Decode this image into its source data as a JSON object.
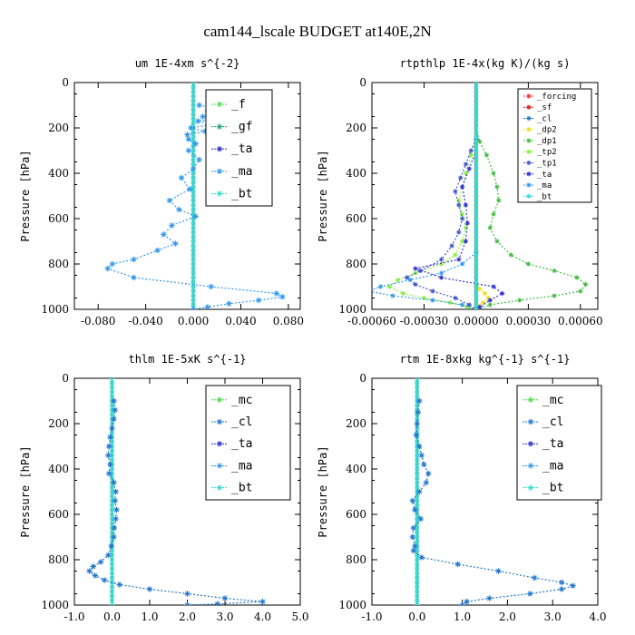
{
  "title": "cam144_lscale  BUDGET at140E,2N",
  "colors": {
    "_f": "#55dd55",
    "_gf": "#22aa77",
    "_ta": "#3333cc",
    "_ma": "#3399ee",
    "_bt": "#33ddcc",
    "_mc": "#55dd55",
    "_cl": "#2277cc",
    "_forcing": "#ee3333",
    "_sf": "#cc2222",
    "_dp2": "#eedd22",
    "_dp1": "#44bb44",
    "_tp2": "#88ee44",
    "_tp1": "#4455cc",
    "axis": "#000000",
    "zero_line": "#3fb050"
  },
  "chart_data": [
    {
      "type": "line",
      "title": "um  1E-4xm s^{-2}",
      "xlabel": "",
      "ylabel": "Pressure [hPa]",
      "xlim": [
        -0.1,
        0.09
      ],
      "ylim": [
        1000,
        0
      ],
      "xticks": [
        -0.08,
        -0.04,
        0.0,
        0.04,
        0.08
      ],
      "xtick_labels": [
        "-0.080",
        "-0.040",
        "0.000",
        "0.040",
        "0.080"
      ],
      "yticks": [
        0,
        200,
        400,
        600,
        800,
        1000
      ],
      "ytick_labels": [
        "0",
        "200",
        "400",
        "600",
        "800",
        "1000"
      ],
      "legend": [
        "_f",
        "_gf",
        "_ta",
        "_ma",
        "_bt"
      ],
      "legend_size": "large",
      "series": [
        {
          "name": "_f",
          "style": "flat",
          "values": [
            0.0
          ]
        },
        {
          "name": "_gf",
          "style": "flat",
          "values": [
            0.0
          ]
        },
        {
          "name": "_ta",
          "style": "flat",
          "values": [
            0.0
          ]
        },
        {
          "name": "_bt",
          "style": "flat",
          "values": [
            0.0
          ]
        },
        {
          "name": "_ma",
          "style": "profile",
          "p": [
            100,
            115,
            125,
            140,
            150,
            160,
            170,
            185,
            200,
            215,
            230,
            250,
            270,
            300,
            340,
            380,
            420,
            470,
            520,
            560,
            590,
            630,
            670,
            710,
            740,
            780,
            800,
            820,
            860,
            900,
            930,
            945,
            960,
            975,
            990,
            1000
          ],
          "x": [
            0.005,
            0.022,
            0.012,
            0.025,
            0.008,
            0.018,
            0.004,
            0.015,
            -0.002,
            0.01,
            -0.005,
            -0.004,
            0.002,
            -0.004,
            0.005,
            0.0,
            -0.01,
            -0.003,
            -0.02,
            -0.012,
            0.002,
            -0.018,
            -0.025,
            -0.015,
            -0.03,
            -0.05,
            -0.068,
            -0.072,
            -0.05,
            0.015,
            0.07,
            0.075,
            0.055,
            0.03,
            0.012,
            0.0
          ]
        }
      ]
    },
    {
      "type": "line",
      "title": "rtpthlp  1E-4x(kg K)/(kg s)",
      "xlabel": "",
      "ylabel": "Pressure [hPa]",
      "xlim": [
        -0.0006,
        0.0007
      ],
      "ylim": [
        1000,
        0
      ],
      "xticks": [
        -0.0006,
        -0.0003,
        0.0,
        0.0003,
        0.0006
      ],
      "xtick_labels": [
        "-0.00060",
        "-0.00030",
        "0.00000",
        "0.00030",
        "0.00060"
      ],
      "yticks": [
        0,
        200,
        400,
        600,
        800,
        1000
      ],
      "ytick_labels": [
        "0",
        "200",
        "400",
        "600",
        "800",
        "1000"
      ],
      "legend": [
        "_forcing",
        "_sf",
        "_cl",
        "_dp2",
        "_dp1",
        "_tp2",
        "_tp1",
        "_ta",
        "_ma",
        "_bt"
      ],
      "legend_size": "small",
      "series": [
        {
          "name": "_forcing",
          "style": "flat",
          "values": [
            0.0
          ]
        },
        {
          "name": "_sf",
          "style": "flat",
          "values": [
            0.0
          ]
        },
        {
          "name": "_cl",
          "style": "flat",
          "values": [
            0.0
          ]
        },
        {
          "name": "_dp2",
          "style": "profile",
          "p": [
            880,
            910,
            930,
            950,
            970,
            985,
            1000
          ],
          "x": [
            0.0,
            2e-05,
            5e-05,
            7e-05,
            4e-05,
            1e-05,
            0.0
          ]
        },
        {
          "name": "_dp1",
          "style": "profile",
          "p": [
            200,
            260,
            320,
            400,
            460,
            520,
            580,
            640,
            700,
            760,
            800,
            830,
            860,
            890,
            920,
            940,
            960,
            980,
            1000
          ],
          "x": [
            0.0,
            2e-05,
            6e-05,
            0.0001,
            0.00012,
            0.00013,
            0.0001,
            8e-05,
            0.00012,
            0.0002,
            0.0003,
            0.00045,
            0.00058,
            0.00063,
            0.0006,
            0.00045,
            0.00025,
            8e-05,
            0.0
          ]
        },
        {
          "name": "_tp2",
          "style": "profile",
          "p": [
            250,
            320,
            400,
            460,
            520,
            580,
            640,
            700,
            760,
            800,
            840,
            870,
            900,
            930,
            950,
            970,
            990,
            1000
          ],
          "x": [
            0.0,
            -3e-05,
            -6e-05,
            -8e-05,
            -0.0001,
            -8e-05,
            -6e-05,
            -8e-05,
            -0.00012,
            -0.0002,
            -0.00035,
            -0.00045,
            -0.0005,
            -0.00042,
            -0.0003,
            -0.00015,
            -5e-05,
            0.0
          ]
        },
        {
          "name": "_tp1",
          "style": "profile",
          "p": [
            250,
            300,
            360,
            420,
            480,
            540,
            600,
            660,
            720,
            780,
            830,
            860,
            890,
            920,
            950,
            980,
            1000
          ],
          "x": [
            0.0,
            -3e-05,
            -6e-05,
            -9e-05,
            -0.00012,
            -0.0001,
            -8e-05,
            -0.0001,
            -0.00014,
            -0.0002,
            -0.00032,
            -0.0004,
            -0.00035,
            -0.00025,
            -0.00012,
            -4e-05,
            0.0
          ]
        },
        {
          "name": "_ta",
          "style": "profile",
          "p": [
            300,
            380,
            460,
            540,
            620,
            700,
            780,
            820,
            860,
            900,
            930,
            960,
            990,
            1000
          ],
          "x": [
            0.0,
            -4e-05,
            -8e-05,
            -6e-05,
            -5e-05,
            -6e-05,
            -0.0001,
            -0.00035,
            -0.0002,
            0.0001,
            0.00015,
            8e-05,
            2e-05,
            0.0
          ]
        },
        {
          "name": "_ma",
          "style": "profile",
          "p": [
            750,
            800,
            840,
            870,
            900,
            920,
            940,
            960,
            980,
            1000
          ],
          "x": [
            0.0,
            -8e-05,
            -0.0002,
            -0.00038,
            -0.00055,
            -0.00062,
            -0.00048,
            -0.00025,
            -8e-05,
            0.0
          ]
        },
        {
          "name": "_bt",
          "style": "flat",
          "values": [
            0.0
          ]
        }
      ]
    },
    {
      "type": "line",
      "title": "thlm  1E-5xK s^{-1}",
      "xlabel": "",
      "ylabel": "Pressure [hPa]",
      "xlim": [
        -1.0,
        5.0
      ],
      "ylim": [
        1000,
        0
      ],
      "xticks": [
        -1.0,
        0.0,
        1.0,
        2.0,
        3.0,
        4.0,
        5.0
      ],
      "xtick_labels": [
        "-1.0",
        "0.0",
        "1.0",
        "2.0",
        "3.0",
        "4.0",
        "5.0"
      ],
      "yticks": [
        0,
        200,
        400,
        600,
        800,
        1000
      ],
      "ytick_labels": [
        "0",
        "200",
        "400",
        "600",
        "800",
        "1000"
      ],
      "legend": [
        "_mc",
        "_cl",
        "_ta",
        "_ma",
        "_bt"
      ],
      "legend_size": "large",
      "series": [
        {
          "name": "_mc",
          "style": "flat",
          "values": [
            0.0
          ]
        },
        {
          "name": "_ta",
          "style": "flat",
          "values": [
            0.0
          ]
        },
        {
          "name": "_bt",
          "style": "flat",
          "values": [
            0.0
          ]
        },
        {
          "name": "_cl",
          "style": "profile",
          "p": [
            100,
            140,
            180,
            220,
            260,
            300,
            340,
            380,
            420,
            460,
            500,
            540,
            580,
            620,
            660,
            700,
            740,
            780,
            810,
            830,
            850,
            870,
            890,
            910,
            930,
            950,
            970,
            985,
            995,
            1000
          ],
          "x": [
            0.05,
            0.08,
            0.05,
            0.0,
            -0.05,
            -0.08,
            -0.1,
            -0.05,
            -0.08,
            0.05,
            0.1,
            0.08,
            0.12,
            0.1,
            0.06,
            0.05,
            -0.02,
            -0.1,
            -0.3,
            -0.5,
            -0.6,
            -0.45,
            -0.2,
            0.2,
            1.0,
            2.0,
            3.0,
            4.0,
            2.8,
            2.0
          ]
        }
      ]
    },
    {
      "type": "line",
      "title": "rtm  1E-8xkg kg^{-1} s^{-1}",
      "xlabel": "",
      "ylabel": "Pressure [hPa]",
      "xlim": [
        -1.0,
        4.0
      ],
      "ylim": [
        1000,
        0
      ],
      "xticks": [
        -1.0,
        0.0,
        1.0,
        2.0,
        3.0,
        4.0
      ],
      "xtick_labels": [
        "-1.0",
        "0.0",
        "1.0",
        "2.0",
        "3.0",
        "4.0"
      ],
      "yticks": [
        0,
        200,
        400,
        600,
        800,
        1000
      ],
      "ytick_labels": [
        "0",
        "200",
        "400",
        "600",
        "800",
        "1000"
      ],
      "legend": [
        "_mc",
        "_cl",
        "_ta",
        "_ma",
        "_bt"
      ],
      "legend_size": "large",
      "series": [
        {
          "name": "_mc",
          "style": "flat",
          "values": [
            0.0
          ]
        },
        {
          "name": "_ta",
          "style": "flat",
          "values": [
            0.0
          ]
        },
        {
          "name": "_bt",
          "style": "flat",
          "values": [
            0.0
          ]
        },
        {
          "name": "_cl",
          "style": "profile",
          "p": [
            100,
            150,
            200,
            250,
            300,
            340,
            380,
            420,
            460,
            500,
            540,
            580,
            620,
            660,
            700,
            740,
            760,
            790,
            820,
            850,
            880,
            900,
            915,
            930,
            950,
            970,
            985,
            1000
          ],
          "x": [
            0.05,
            0.02,
            0.0,
            -0.02,
            0.05,
            0.1,
            0.15,
            0.25,
            0.2,
            0.05,
            -0.1,
            -0.05,
            0.08,
            -0.08,
            -0.1,
            -0.05,
            -0.08,
            0.1,
            0.9,
            1.8,
            2.6,
            3.2,
            3.45,
            3.2,
            2.5,
            1.6,
            1.1,
            1.0
          ]
        }
      ]
    }
  ]
}
